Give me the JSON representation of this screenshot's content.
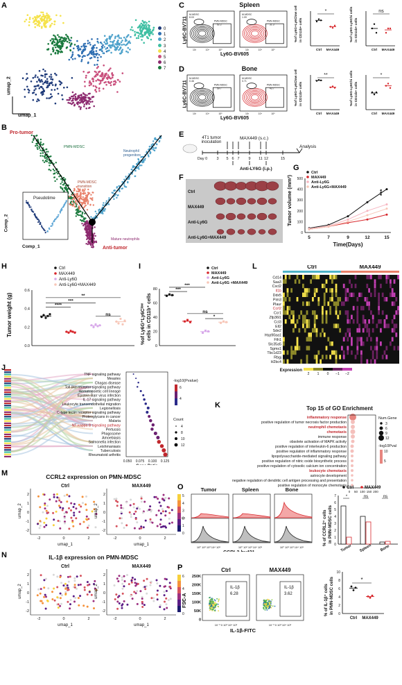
{
  "panels": [
    "A",
    "B",
    "C",
    "D",
    "E",
    "F",
    "G",
    "H",
    "I",
    "J",
    "K",
    "L",
    "M",
    "N",
    "O",
    "P"
  ],
  "colors": {
    "ctrl": "#111111",
    "max449": "#d7262b",
    "anti": "#f0b9c2",
    "combo": "#f7c6b7",
    "cluster0": "#1f3b7a",
    "cluster1": "#2f6fb2",
    "cluster2": "#4ea2cb",
    "cluster3": "#3fbfa3",
    "cluster4": "#f5e24b",
    "cluster5": "#c94f7c",
    "cluster6": "#8d2a6f",
    "cluster7": "#1b7a3e"
  },
  "A": {
    "xlabel": "umap_1",
    "ylabel": "umap_2",
    "legend": [
      "0",
      "1",
      "2",
      "3",
      "4",
      "5",
      "6",
      "7"
    ]
  },
  "B": {
    "pro": "Pro-tumor",
    "anti": "Anti-tumor",
    "pmn": "PMN-MDSC",
    "neut_prog": "Neutrophil progenitors",
    "trans": "PMN-MDSC transition",
    "mature": "Mature neutrophils",
    "pseudotime": "Pseudotime",
    "xlabel": "Comp_1",
    "ylabel": "Comp_2"
  },
  "C": {
    "title": "Spleen",
    "ylab": "Ly6C-BV711",
    "xlab": "Ly6G-BV605",
    "mmdsc1": "M-MDSC",
    "mv1": "8.03",
    "pmn1": "PMN-MDSC",
    "pv1": "52.2",
    "mmdsc2": "M-MDSC",
    "mv2": "1.09",
    "pmn2": "PMN-MDSC",
    "pv2": "31.3",
    "bar1_ylab": "%of Ly6G+Ly6Clow cells in CD11b+ cells",
    "bar2_ylab": "%of Ly6G-Ly6Chi cells in CD11b+ cells",
    "sig1": "*",
    "sig2": "ns",
    "xcats": [
      "Ctrl",
      "MAX449"
    ]
  },
  "D": {
    "title": "Bone",
    "ylab": "Ly6C-BV711",
    "xlab": "Ly6G-BV605",
    "mmdsc1": "M-MDSC",
    "mv1": "0.46",
    "pmn1": "PMN-MDSC",
    "pv1": "59.7",
    "mmdsc2": "M-MDSC",
    "mv2": "0.71",
    "pmn2": "PMN-MDSC",
    "pv2": "43.7",
    "bar1_ylab": "%of Ly6G+Ly6Clow cells in CD11b+ cells",
    "bar2_ylab": "%of Ly6G-Ly6Chi cells in CD11b+ cells",
    "sig1": "**",
    "sig2": "*",
    "xcats": [
      "Ctrl",
      "MAX449"
    ]
  },
  "E": {
    "inoc": "4T1 tumor inoculation",
    "drug": "MAX449 (s.c.)",
    "analysis": "Analysis",
    "days": [
      "Day 0",
      "3",
      "5",
      "6",
      "7",
      "9",
      "11",
      "12",
      "15"
    ],
    "anti": "Anti-LY6G (i.p.)"
  },
  "F": {
    "groups": [
      "Ctrl",
      "MAX449",
      "Anti-Ly6G",
      "Anti-Ly6G+MAX449"
    ]
  },
  "G": {
    "ylabel": "Tumor volume (mm³)",
    "xlabel": "Time(Days)",
    "legend": [
      "Ctrl",
      "MAX449",
      "Anti-Ly6G",
      "Anti-Ly6G+MAX449"
    ],
    "sig": "***"
  },
  "H": {
    "ylabel": "Tumor weight (g)",
    "legend": [
      "Ctrl",
      "MAX449",
      "Anti-Ly6G",
      "Anti-Ly6G+MAX449"
    ],
    "sigs": [
      "****",
      "***",
      "**",
      "ns"
    ],
    "yticks": [
      "0.0",
      "0.2",
      "0.4",
      "0.6"
    ]
  },
  "I": {
    "ylabel": "%of Ly6G+Ly6Clow cells in CD11b+ cells",
    "legend": [
      "Ctrl",
      "MAX449",
      "Anti-Ly6G",
      "Anti-Ly6G +MAX449"
    ],
    "sigs": [
      "***",
      "***",
      "ns",
      "*"
    ],
    "yticks": [
      "0",
      "20",
      "40",
      "60",
      "80"
    ]
  },
  "J": {
    "pathways": [
      "TNF signaling pathway",
      "Measles",
      "Chagas disease",
      "Toll-like receptor signaling pathway",
      "Hematopoietic cell lineage",
      "Epstein-Barr virus infection",
      "IL-17 signaling pathway",
      "Leukocyte transendothelial migration",
      "Legionellosis",
      "C-type lectin receptor signaling pathway",
      "Proteoglycans in cancer",
      "Malaria",
      "NF-kappa B signaling pathway",
      "Pertussis",
      "Phagosome",
      "Amoebiasis",
      "Salmonella infection",
      "Leishmaniasis",
      "Tuberculosis",
      "Rheumatoid arthritis"
    ],
    "xlabel": "Gene.Ratio",
    "xticks": [
      "0.050",
      "0.075",
      "0.100",
      "0.125"
    ],
    "legend_title": "-log10(Pvalue)",
    "count_title": "Count",
    "count_vals": [
      "4",
      "8",
      "10",
      "12"
    ],
    "color_ticks": [
      "6",
      "4"
    ]
  },
  "K": {
    "title": "Top 15 of GO Enrichment",
    "terms": [
      "inflammatory response",
      "positive regulation of tumor necrosis factor production",
      "neutrophil chemotaxis",
      "chemotaxis",
      "immune response",
      "obsolete activation of MAPK activity",
      "positive regulation of interleukin-6 production",
      "positive regulation of inflammatory response",
      "lipopolysaccharide-mediated signaling pathway",
      "positive regulation of nitric oxide biosynthetic process",
      "positive regulation of cytosolic calcium ion concentration",
      "leukocyte chemotaxis",
      "astrocyte development",
      "negative regulation of dendritic cell antigen processing and presentation",
      "positive regulation of monocyte chemotaxis"
    ],
    "red_terms": [
      0,
      2,
      3,
      11
    ],
    "xlabel": "Rich factor",
    "xticks": [
      "0",
      "50",
      "100",
      "150",
      "200"
    ],
    "num_gene": "Num.Gene",
    "ng_vals": [
      "3",
      "6",
      "9",
      "12"
    ],
    "pval": "-log10Pval",
    "pval_ticks": [
      "10",
      "5"
    ]
  },
  "L": {
    "groups": [
      "Ctrl",
      "MAX449"
    ],
    "genes": [
      "Cd14",
      "Saa3",
      "Cxcl2",
      "Il1b",
      "Ddx5",
      "Pim3",
      "Plaur",
      "Ccrl2",
      "Ccr1",
      "Zfp36l1",
      "Ccl3",
      "Ell2",
      "Sde2",
      "Hsp90aa1",
      "Fth1",
      "Slc35a5",
      "Sgms1",
      "Tbc1d23",
      "Rbgj",
      "H2bc4"
    ],
    "red_genes": [
      3,
      7
    ],
    "legend": "Expression",
    "ticks": [
      "2",
      "1",
      "0",
      "−1",
      "−2"
    ]
  },
  "M": {
    "title": "CCRL2 expression on PMN-MDSC",
    "ctrl": "Ctrl",
    "max": "MAX449",
    "xlabel": "umap_1",
    "ylabel": "umap_2",
    "scale": [
      "5",
      "4",
      "3",
      "2",
      "1",
      "0"
    ]
  },
  "N": {
    "title": "IL-1β expression on PMN-MDSC",
    "ctrl": "Ctrl",
    "max": "MAX449",
    "xlabel": "umap_1",
    "ylabel": "umap_2",
    "scale": [
      "6",
      "4",
      "2",
      "0"
    ]
  },
  "O": {
    "tissues": [
      "Tumor",
      "Spleen",
      "Bone"
    ],
    "xlab": "CCRL2-bv421",
    "legend": [
      "Ctrl",
      "MAX449"
    ],
    "ylabel": "% of CCRL2+ cells in PMN-MDSC cells",
    "sigs": [
      "*",
      "ns",
      "ns"
    ],
    "yticks": [
      "0",
      "1",
      "2",
      "3",
      "4",
      "5",
      "6",
      "7"
    ],
    "xcats": [
      "Tumor",
      "Spleen",
      "Bone"
    ]
  },
  "P": {
    "ctrl": "Ctrl",
    "max": "MAX449",
    "ylab": "FSC-A",
    "xlab": "IL-1β-FITC",
    "gate1": "IL-1β",
    "v1": "6.28",
    "gate2": "IL-1β",
    "v2": "3.62",
    "bar_ylab": "% of IL-1β+ cells in PMN-MDSC cells",
    "sig": "*",
    "xcats": [
      "Ctrl",
      "MAX449"
    ],
    "yticks": [
      "0",
      "2",
      "4",
      "6",
      "8",
      "10"
    ],
    "flow_yticks": [
      "250K",
      "200K",
      "150K",
      "100K",
      "50K",
      "0"
    ]
  }
}
